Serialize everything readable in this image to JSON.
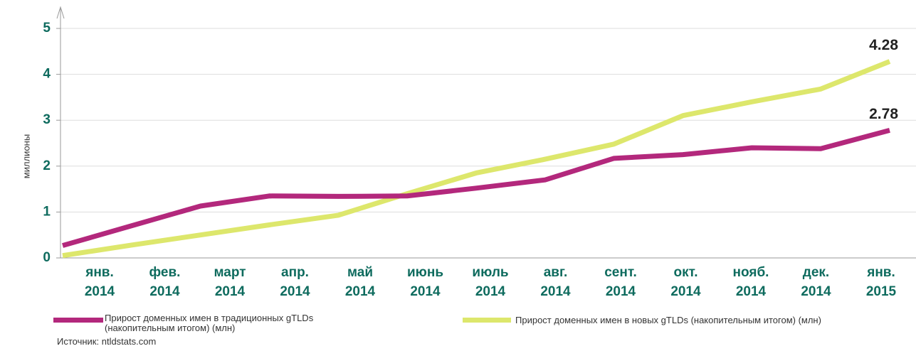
{
  "chart_data": {
    "type": "line",
    "y_label": "миллионы",
    "categories": [
      [
        "янв.",
        "2014"
      ],
      [
        "фев.",
        "2014"
      ],
      [
        "март",
        "2014"
      ],
      [
        "апр.",
        "2014"
      ],
      [
        "май",
        "2014"
      ],
      [
        "июнь",
        "2014"
      ],
      [
        "июль",
        "2014"
      ],
      [
        "авг.",
        "2014"
      ],
      [
        "сент.",
        "2014"
      ],
      [
        "окт.",
        "2014"
      ],
      [
        "нояб.",
        "2014"
      ],
      [
        "дек.",
        "2014"
      ],
      [
        "янв.",
        "2015"
      ]
    ],
    "series": [
      {
        "name": "Прирост доменных имен в традиционных gTLDs (накопительным итогом) (млн)",
        "color": "#b3287c",
        "values": [
          0.27,
          0.7,
          1.13,
          1.35,
          1.34,
          1.35,
          1.52,
          1.7,
          2.17,
          2.25,
          2.4,
          2.38,
          2.78
        ]
      },
      {
        "name": "Прирост доменных имен в новых gTLDs (накопительным итогом) (млн)",
        "color": "#dde76c",
        "values": [
          0.05,
          0.28,
          0.5,
          0.72,
          0.93,
          1.4,
          1.85,
          2.15,
          2.48,
          3.1,
          3.4,
          3.68,
          4.28
        ]
      }
    ],
    "ylim": [
      0,
      5
    ],
    "yticks": [
      0,
      1,
      2,
      3,
      4,
      5
    ],
    "grid": true,
    "source": "Источник: ntldstats.com"
  }
}
